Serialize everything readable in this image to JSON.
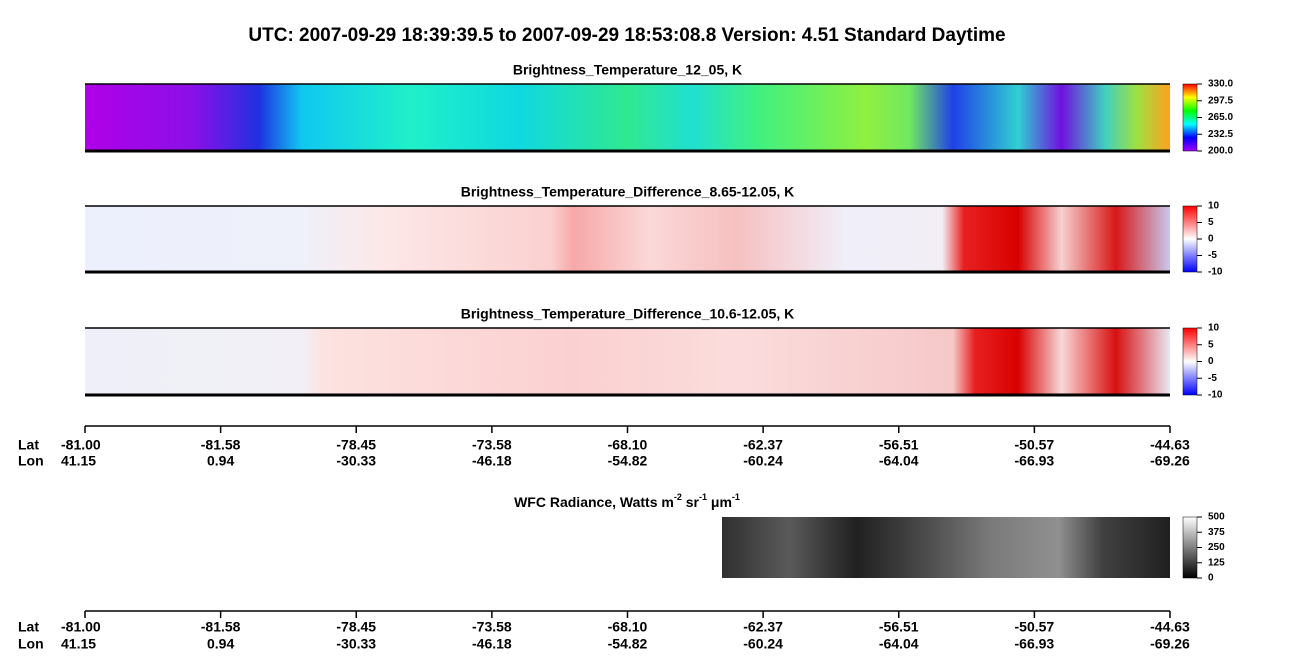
{
  "title": "UTC:  2007-09-29   18:39:39.5  to  2007-09-29   18:53:08.8    Version: 4.51  Standard Daytime",
  "panels": [
    {
      "title": "Brightness_Temperature_12_05, K",
      "lim": [
        200,
        330
      ],
      "ticks": [
        {
          "value": 330,
          "label": "330.0"
        },
        297.5,
        {
          "value": 265,
          "label": "265.0"
        },
        232.5,
        {
          "value": 200,
          "label": "200.0"
        }
      ]
    },
    {
      "title": "Brightness_Temperature_Difference_8.65-12.05, K",
      "lim": [
        -10,
        10
      ],
      "ticks": [
        10,
        5,
        0,
        -5,
        -10
      ]
    },
    {
      "title": "Brightness_Temperature_Difference_10.6-12.05, K",
      "lim": [
        -10,
        10
      ],
      "ticks": [
        10,
        5,
        0,
        -5,
        -10
      ]
    }
  ],
  "wfc": {
    "title_parts": [
      {
        "text": "WFC Radiance, Watts m"
      },
      {
        "sup": "-2"
      },
      {
        "text": " sr"
      },
      {
        "sup": "-1"
      },
      {
        "text": " μm"
      },
      {
        "sup": "-1"
      }
    ],
    "lim": [
      0,
      500
    ],
    "ticks": [
      500,
      375,
      250,
      125,
      0
    ]
  },
  "axis": {
    "lat_label": "Lat",
    "lon_label": "Lon",
    "lat": [
      {
        "value": -81,
        "label": "-81.00"
      },
      -81.58,
      -78.45,
      -73.58,
      {
        "value": -68.1,
        "label": "-68.10"
      },
      -62.37,
      -56.51,
      -50.57,
      -44.63
    ],
    "lon": [
      41.15,
      0.94,
      -30.33,
      -46.18,
      -54.82,
      -60.24,
      -64.04,
      -66.93,
      -69.26
    ]
  }
}
